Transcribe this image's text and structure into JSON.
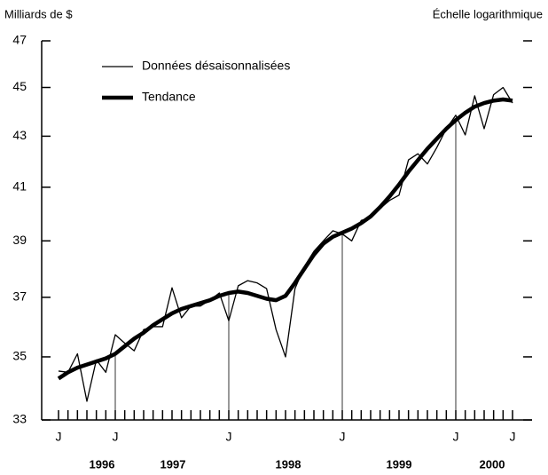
{
  "chart_data": {
    "type": "line",
    "y_axis_label": "Milliards de $",
    "scale_note": "Échelle logarithmique",
    "log_scale": true,
    "ylim": [
      33,
      47
    ],
    "yticks": [
      33,
      35,
      37,
      39,
      41,
      43,
      45,
      47
    ],
    "categories": [
      "J",
      null,
      null,
      null,
      null,
      null,
      "J",
      null,
      null,
      null,
      null,
      null,
      null,
      null,
      null,
      null,
      null,
      null,
      "J",
      null,
      null,
      null,
      null,
      null,
      null,
      null,
      null,
      null,
      null,
      null,
      "J",
      null,
      null,
      null,
      null,
      null,
      null,
      null,
      null,
      null,
      null,
      null,
      "J",
      null,
      null,
      null,
      null,
      null,
      "J"
    ],
    "year_labels": [
      "1996",
      "1997",
      "1998",
      "1999",
      "2000"
    ],
    "series": [
      {
        "name": "Données désaisonnalisées",
        "color": "#000000",
        "values": [
          34.54,
          34.5,
          35.1,
          33.58,
          34.9,
          34.5,
          35.73,
          35.45,
          35.2,
          35.9,
          36.0,
          36.0,
          37.33,
          36.3,
          36.7,
          36.7,
          36.9,
          37.15,
          36.2,
          37.4,
          37.58,
          37.5,
          37.3,
          35.9,
          35.0,
          37.3,
          38.08,
          38.62,
          39.0,
          39.37,
          39.25,
          39.0,
          39.75,
          39.85,
          40.2,
          40.5,
          40.7,
          42.06,
          42.3,
          41.9,
          42.55,
          43.3,
          43.85,
          43.05,
          44.65,
          43.3,
          44.7,
          45.0,
          44.35
        ]
      },
      {
        "name": "Tendance",
        "color": "#000000",
        "values": [
          34.3,
          34.5,
          34.65,
          34.75,
          34.85,
          34.95,
          35.1,
          35.35,
          35.6,
          35.8,
          36.05,
          36.25,
          36.45,
          36.6,
          36.7,
          36.8,
          36.9,
          37.05,
          37.15,
          37.2,
          37.15,
          37.05,
          36.95,
          36.9,
          37.05,
          37.5,
          38.0,
          38.5,
          38.9,
          39.15,
          39.3,
          39.45,
          39.65,
          39.9,
          40.25,
          40.65,
          41.1,
          41.6,
          42.05,
          42.5,
          42.9,
          43.3,
          43.65,
          43.95,
          44.2,
          44.35,
          44.45,
          44.5,
          44.45
        ]
      }
    ]
  }
}
